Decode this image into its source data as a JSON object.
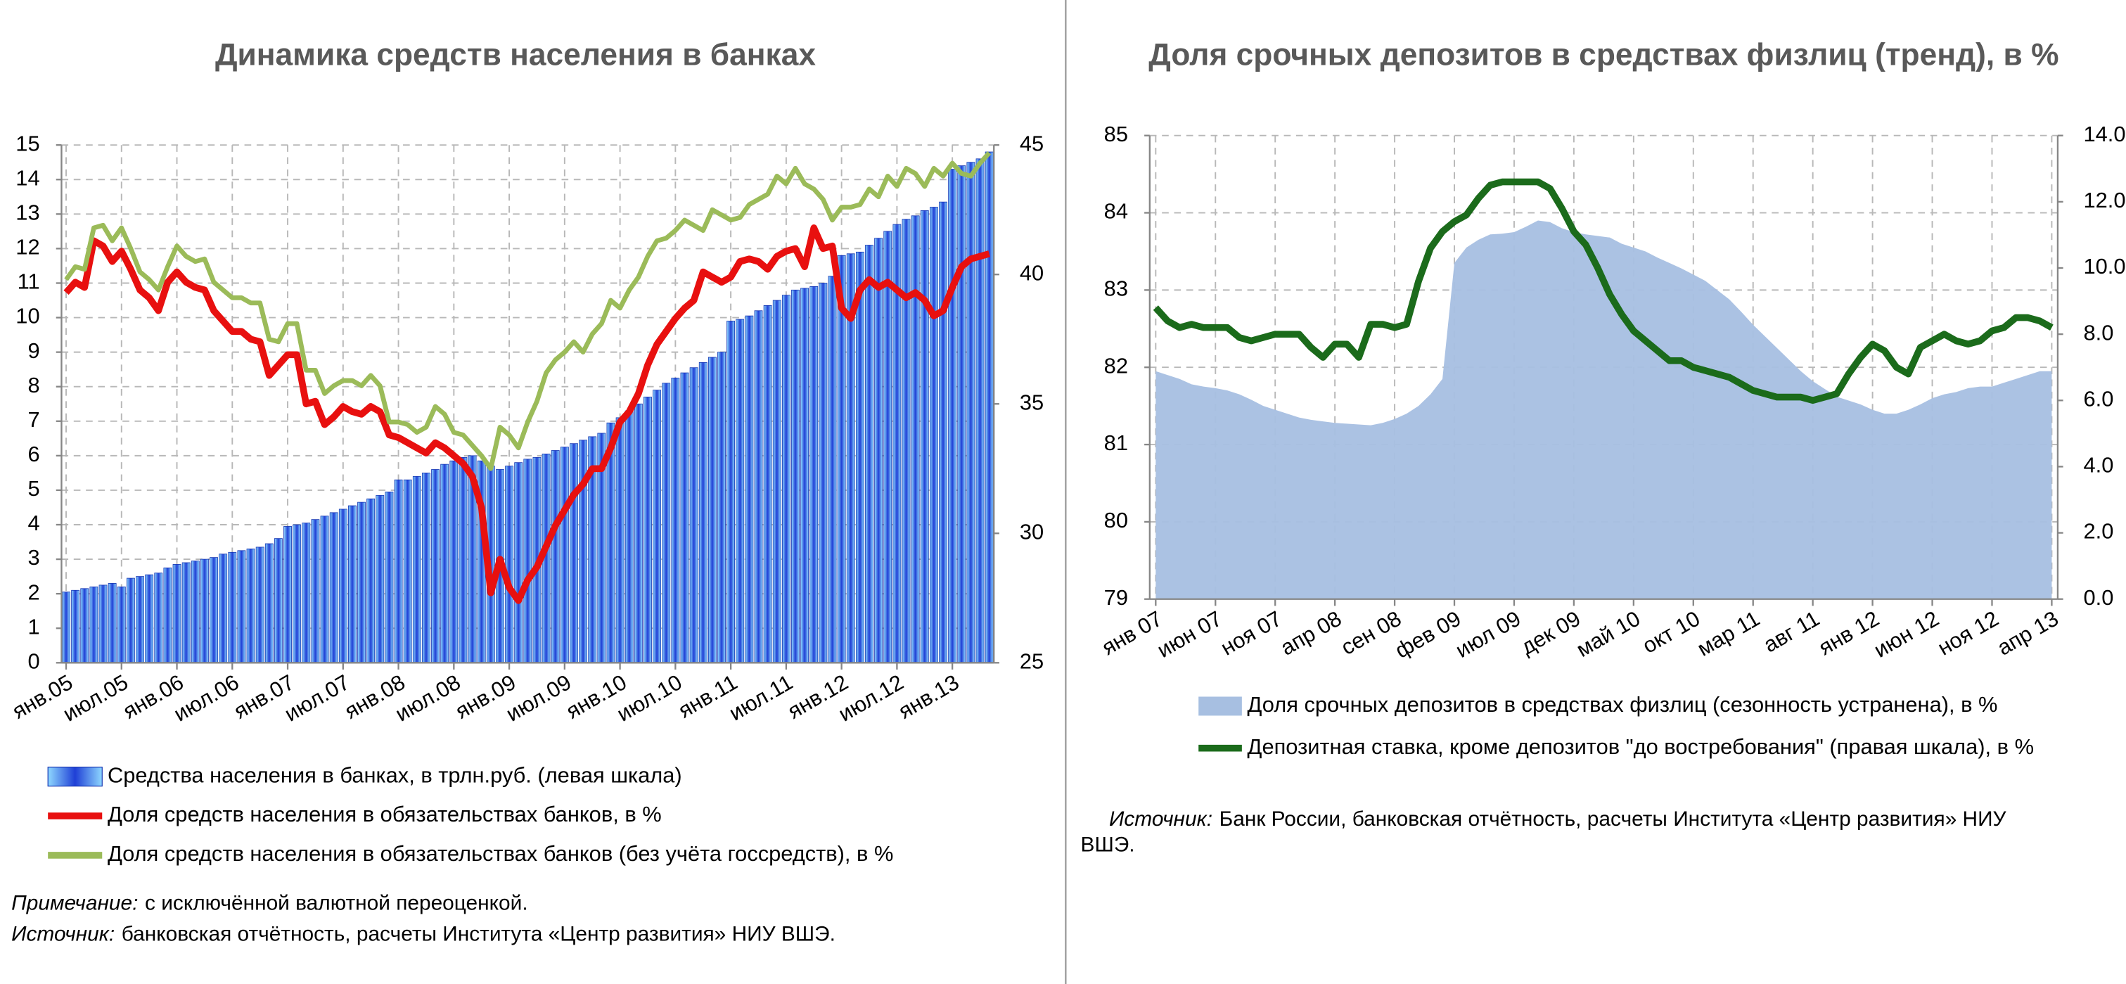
{
  "chart_data": [
    {
      "type": "bar",
      "title": "Динамика средств населения в банках",
      "grid": true,
      "categories": [
        "янв.05",
        null,
        null,
        null,
        null,
        null,
        "июл.05",
        null,
        null,
        null,
        null,
        null,
        "янв.06",
        null,
        null,
        null,
        null,
        null,
        "июл.06",
        null,
        null,
        null,
        null,
        null,
        "янв.07",
        null,
        null,
        null,
        null,
        null,
        "июл.07",
        null,
        null,
        null,
        null,
        null,
        "янв.08",
        null,
        null,
        null,
        null,
        null,
        "июл.08",
        null,
        null,
        null,
        null,
        null,
        "янв.09",
        null,
        null,
        null,
        null,
        null,
        "июл.09",
        null,
        null,
        null,
        null,
        null,
        "янв.10",
        null,
        null,
        null,
        null,
        null,
        "июл.10",
        null,
        null,
        null,
        null,
        null,
        "янв.11",
        null,
        null,
        null,
        null,
        null,
        "июл.11",
        null,
        null,
        null,
        null,
        null,
        "янв.12",
        null,
        null,
        null,
        null,
        null,
        "июл.12",
        null,
        null,
        null,
        null,
        null,
        "янв.13",
        null,
        null,
        null,
        null
      ],
      "ylim": [
        0,
        15
      ],
      "yticks": [
        0,
        1,
        2,
        3,
        4,
        5,
        6,
        7,
        8,
        9,
        10,
        11,
        12,
        13,
        14,
        15
      ],
      "y2lim": [
        25,
        45
      ],
      "y2ticks": [
        25,
        30,
        35,
        40,
        45
      ],
      "series": [
        {
          "name": "Средства населения в банках, в трлн.руб. (левая шкала)",
          "type": "bar",
          "color": "#1f3fd6",
          "values": [
            2.05,
            2.1,
            2.15,
            2.2,
            2.25,
            2.3,
            2.2,
            2.45,
            2.5,
            2.55,
            2.6,
            2.75,
            2.85,
            2.9,
            2.95,
            3.0,
            3.05,
            3.15,
            3.2,
            3.25,
            3.3,
            3.35,
            3.45,
            3.6,
            3.95,
            4.0,
            4.05,
            4.15,
            4.25,
            4.35,
            4.45,
            4.55,
            4.65,
            4.75,
            4.85,
            4.95,
            5.3,
            5.3,
            5.4,
            5.5,
            5.6,
            5.75,
            5.85,
            5.95,
            6.0,
            5.85,
            5.7,
            5.6,
            5.7,
            5.8,
            5.9,
            5.95,
            6.05,
            6.15,
            6.25,
            6.35,
            6.45,
            6.55,
            6.65,
            6.95,
            7.1,
            7.3,
            7.5,
            7.7,
            7.9,
            8.1,
            8.25,
            8.4,
            8.55,
            8.7,
            8.85,
            9.0,
            9.9,
            9.95,
            10.05,
            10.2,
            10.35,
            10.5,
            10.65,
            10.8,
            10.85,
            10.9,
            11.0,
            11.2,
            11.8,
            11.85,
            11.9,
            12.1,
            12.3,
            12.5,
            12.7,
            12.85,
            12.95,
            13.1,
            13.2,
            13.35,
            14.3,
            14.4,
            14.5,
            14.6,
            14.8
          ]
        },
        {
          "name": "Доля средств населения в обязательствах банков, в %",
          "type": "line",
          "axis": "y2",
          "color": "#e8100f",
          "values": [
            39.3,
            39.7,
            39.5,
            41.3,
            41.1,
            40.5,
            40.9,
            40.2,
            39.4,
            39.1,
            38.6,
            39.7,
            40.1,
            39.7,
            39.5,
            39.4,
            38.6,
            38.2,
            37.8,
            37.8,
            37.5,
            37.4,
            36.1,
            36.5,
            36.9,
            36.9,
            35.0,
            35.1,
            34.2,
            34.5,
            34.9,
            34.7,
            34.6,
            34.9,
            34.7,
            33.8,
            33.7,
            33.5,
            33.3,
            33.1,
            33.5,
            33.3,
            33.0,
            32.7,
            32.2,
            31.0,
            27.7,
            29.0,
            27.9,
            27.4,
            28.2,
            28.7,
            29.5,
            30.3,
            30.9,
            31.5,
            31.9,
            32.5,
            32.5,
            33.3,
            34.3,
            34.7,
            35.4,
            36.5,
            37.3,
            37.8,
            38.3,
            38.7,
            39.0,
            40.1,
            39.9,
            39.7,
            39.9,
            40.5,
            40.6,
            40.5,
            40.2,
            40.7,
            40.9,
            41.0,
            40.3,
            41.8,
            41.0,
            41.1,
            38.7,
            38.3,
            39.4,
            39.8,
            39.5,
            39.7,
            39.4,
            39.1,
            39.3,
            39.0,
            38.4,
            38.6,
            39.5,
            40.3,
            40.6,
            40.7,
            40.8
          ]
        },
        {
          "name": "Доля средств населения в обязательствах банков (без учёта госсредств), в %",
          "type": "line",
          "axis": "y2",
          "color": "#9bbb59",
          "values": [
            39.8,
            40.3,
            40.2,
            41.8,
            41.9,
            41.3,
            41.8,
            41.0,
            40.1,
            39.8,
            39.4,
            40.3,
            41.1,
            40.7,
            40.5,
            40.6,
            39.7,
            39.4,
            39.1,
            39.1,
            38.9,
            38.9,
            37.5,
            37.4,
            38.1,
            38.1,
            36.3,
            36.3,
            35.4,
            35.7,
            35.9,
            35.9,
            35.7,
            36.1,
            35.7,
            34.3,
            34.3,
            34.2,
            33.9,
            34.1,
            34.9,
            34.6,
            33.9,
            33.8,
            33.4,
            33.0,
            32.5,
            34.1,
            33.8,
            33.3,
            34.3,
            35.1,
            36.2,
            36.7,
            37.0,
            37.4,
            37.0,
            37.7,
            38.1,
            39.0,
            38.7,
            39.4,
            39.9,
            40.7,
            41.3,
            41.4,
            41.7,
            42.1,
            41.9,
            41.7,
            42.5,
            42.3,
            42.1,
            42.2,
            42.7,
            42.9,
            43.1,
            43.8,
            43.5,
            44.1,
            43.5,
            43.3,
            42.9,
            42.1,
            42.6,
            42.6,
            42.7,
            43.3,
            43.0,
            43.8,
            43.4,
            44.1,
            43.9,
            43.4,
            44.1,
            43.8,
            44.3,
            43.9,
            43.8,
            44.3,
            44.7
          ]
        }
      ]
    },
    {
      "type": "area",
      "title": "Доля срочных депозитов в средствах физлиц (тренд), в %",
      "grid": true,
      "categories": [
        "янв 07",
        null,
        null,
        null,
        null,
        "июн 07",
        null,
        null,
        null,
        null,
        "ноя 07",
        null,
        null,
        null,
        null,
        "апр 08",
        null,
        null,
        null,
        null,
        "сен 08",
        null,
        null,
        null,
        null,
        "фев 09",
        null,
        null,
        null,
        null,
        "июл 09",
        null,
        null,
        null,
        null,
        "дек 09",
        null,
        null,
        null,
        null,
        "май 10",
        null,
        null,
        null,
        null,
        "окт 10",
        null,
        null,
        null,
        null,
        "мар 11",
        null,
        null,
        null,
        null,
        "авг 11",
        null,
        null,
        null,
        null,
        "янв 12",
        null,
        null,
        null,
        null,
        "июн 12",
        null,
        null,
        null,
        null,
        "ноя 12",
        null,
        null,
        null,
        null,
        "апр 13"
      ],
      "ylim": [
        79,
        85
      ],
      "yticks": [
        79,
        80,
        81,
        82,
        83,
        84,
        85
      ],
      "y2lim": [
        0,
        14
      ],
      "y2ticks": [
        {
          "value": 0,
          "label": "0.0"
        },
        {
          "value": 2,
          "label": "2.0"
        },
        {
          "value": 4,
          "label": "4.0"
        },
        {
          "value": 6,
          "label": "6.0"
        },
        {
          "value": 8,
          "label": "8.0"
        },
        {
          "value": 10,
          "label": "10.0"
        },
        {
          "value": 12,
          "label": "12.0"
        },
        {
          "value": 14,
          "label": "14.0"
        }
      ],
      "series": [
        {
          "name": "Доля срочных депозитов в средствах физлиц (сезонность устранена), в %",
          "type": "area",
          "color": "#a7bfe1",
          "values": [
            81.95,
            81.9,
            81.85,
            81.78,
            81.75,
            81.73,
            81.7,
            81.65,
            81.58,
            81.5,
            81.45,
            81.4,
            81.35,
            81.32,
            81.3,
            81.28,
            81.27,
            81.26,
            81.25,
            81.28,
            81.33,
            81.4,
            81.5,
            81.65,
            81.85,
            83.35,
            83.55,
            83.65,
            83.72,
            83.73,
            83.75,
            83.82,
            83.9,
            83.88,
            83.8,
            83.75,
            83.72,
            83.7,
            83.68,
            83.6,
            83.55,
            83.5,
            83.42,
            83.35,
            83.28,
            83.2,
            83.12,
            83.0,
            82.88,
            82.72,
            82.55,
            82.4,
            82.25,
            82.1,
            81.95,
            81.82,
            81.72,
            81.62,
            81.57,
            81.52,
            81.45,
            81.4,
            81.4,
            81.45,
            81.52,
            81.6,
            81.65,
            81.68,
            81.73,
            81.75,
            81.75,
            81.8,
            81.85,
            81.9,
            81.95,
            81.95
          ]
        },
        {
          "name": "Депозитная ставка, кроме депозитов \"до востребования\" (правая шкала), в %",
          "type": "line",
          "axis": "y2",
          "color": "#1b6b1b",
          "values": [
            8.8,
            8.4,
            8.2,
            8.3,
            8.2,
            8.2,
            8.2,
            7.9,
            7.8,
            7.9,
            8.0,
            8.0,
            8.0,
            7.6,
            7.3,
            7.7,
            7.7,
            7.3,
            8.3,
            8.3,
            8.2,
            8.3,
            9.6,
            10.6,
            11.1,
            11.4,
            11.6,
            12.1,
            12.5,
            12.6,
            12.6,
            12.6,
            12.6,
            12.4,
            11.8,
            11.1,
            10.7,
            10.0,
            9.2,
            8.6,
            8.1,
            7.8,
            7.5,
            7.2,
            7.2,
            7.0,
            6.9,
            6.8,
            6.7,
            6.5,
            6.3,
            6.2,
            6.1,
            6.1,
            6.1,
            6.0,
            6.1,
            6.2,
            6.8,
            7.3,
            7.7,
            7.5,
            7.0,
            6.8,
            7.6,
            7.8,
            8.0,
            7.8,
            7.7,
            7.8,
            8.1,
            8.2,
            8.5,
            8.5,
            8.4,
            8.2
          ]
        }
      ]
    }
  ],
  "left_notes": [
    {
      "label": "Примечание:",
      "text": "с исключённой валютной переоценкой."
    },
    {
      "label": "Источник:",
      "text": "банковская отчётность, расчеты Института «Центр развития» НИУ ВШЭ."
    }
  ],
  "right_source": {
    "label": "Источник:",
    "lines": [
      "Банк России, банковская отчётность, расчеты Института «Центр развития» НИУ",
      "ВШЭ."
    ]
  }
}
